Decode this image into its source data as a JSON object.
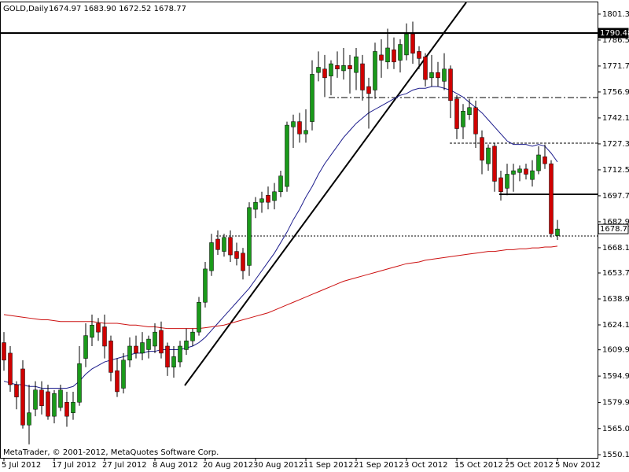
{
  "chart_data": {
    "type": "candlestick",
    "title": "GOLD,Daily",
    "ohlc_text": "1674.97 1683.90 1672.52 1678.77",
    "footer": "MetaTrader, © 2001-2012, MetaQuotes Software Corp.",
    "categories": [
      "5 Jul 2012",
      null,
      null,
      null,
      null,
      null,
      null,
      null,
      "17 Jul 2012",
      null,
      null,
      null,
      null,
      null,
      null,
      null,
      "27 Jul 2012",
      null,
      null,
      null,
      null,
      null,
      null,
      null,
      "8 Aug 2012",
      null,
      null,
      null,
      null,
      null,
      null,
      null,
      "20 Aug 2012",
      null,
      null,
      null,
      null,
      null,
      null,
      null,
      "30 Aug 2012",
      null,
      null,
      null,
      null,
      null,
      null,
      null,
      "11 Sep 2012",
      null,
      null,
      null,
      null,
      null,
      null,
      null,
      "21 Sep 2012",
      null,
      null,
      null,
      null,
      null,
      null,
      null,
      "3 Oct 2012",
      null,
      null,
      null,
      null,
      null,
      null,
      null,
      "15 Oct 2012",
      null,
      null,
      null,
      null,
      null,
      null,
      null,
      "25 Oct 2012",
      null,
      null,
      null,
      null,
      null,
      null,
      null,
      "5 Nov 2012"
    ],
    "open": [
      1614,
      1608,
      1590,
      1599,
      1567,
      1576,
      1587,
      1586,
      1572,
      1577,
      1580,
      1574,
      1580,
      1605,
      1617,
      1625,
      1623,
      1615,
      1598,
      1588,
      1604,
      1612,
      1608,
      1610,
      1612,
      1621,
      1612,
      1600,
      1603,
      1610,
      1615,
      1620,
      1637,
      1655,
      1673,
      1666,
      1674,
      1666,
      1665,
      1658,
      1690,
      1694,
      1698,
      1695,
      1700,
      1703,
      1737,
      1740,
      1733,
      1740,
      1768,
      1770,
      1766,
      1772,
      1769,
      1772,
      1768,
      1773,
      1760,
      1758,
      1778,
      1774,
      1781,
      1775,
      1778,
      1790,
      1780,
      1777,
      1765,
      1768,
      1763,
      1770,
      1753,
      1737,
      1744,
      1748,
      1731,
      1716,
      1726,
      1708,
      1702,
      1710,
      1711,
      1713,
      1707,
      1712,
      1720,
      1716,
      1674.97
    ],
    "high": [
      1620,
      1612,
      1592,
      1604,
      1590,
      1592,
      1592,
      1590,
      1587,
      1590,
      1586,
      1586,
      1612,
      1625,
      1630,
      1628,
      1630,
      1618,
      1605,
      1608,
      1617,
      1618,
      1620,
      1618,
      1625,
      1626,
      1614,
      1612,
      1615,
      1622,
      1622,
      1640,
      1660,
      1676,
      1678,
      1676,
      1678,
      1671,
      1668,
      1694,
      1697,
      1700,
      1703,
      1705,
      1712,
      1740,
      1744,
      1745,
      1747,
      1775,
      1780,
      1778,
      1775,
      1780,
      1782,
      1778,
      1782,
      1778,
      1765,
      1785,
      1787,
      1793,
      1788,
      1787,
      1796,
      1797,
      1783,
      1779,
      1778,
      1774,
      1779,
      1772,
      1755,
      1750,
      1753,
      1752,
      1735,
      1727,
      1728,
      1712,
      1716,
      1716,
      1715,
      1716,
      1718,
      1726,
      1727,
      1718,
      1683.9
    ],
    "low": [
      1598,
      1586,
      1576,
      1565,
      1556,
      1572,
      1573,
      1570,
      1568,
      1575,
      1566,
      1570,
      1578,
      1600,
      1612,
      1615,
      1605,
      1592,
      1583,
      1585,
      1600,
      1605,
      1604,
      1605,
      1608,
      1605,
      1595,
      1594,
      1600,
      1607,
      1612,
      1618,
      1634,
      1652,
      1664,
      1663,
      1660,
      1658,
      1650,
      1652,
      1685,
      1688,
      1690,
      1690,
      1697,
      1700,
      1725,
      1728,
      1728,
      1735,
      1763,
      1754,
      1755,
      1765,
      1764,
      1756,
      1758,
      1752,
      1736,
      1753,
      1765,
      1770,
      1770,
      1768,
      1775,
      1773,
      1770,
      1760,
      1760,
      1760,
      1758,
      1742,
      1730,
      1730,
      1741,
      1725,
      1710,
      1712,
      1700,
      1695,
      1698,
      1700,
      1706,
      1707,
      1703,
      1710,
      1713,
      1674,
      1672.52
    ],
    "close": [
      1604,
      1590,
      1583,
      1567,
      1574,
      1587,
      1578,
      1572,
      1585,
      1587,
      1572,
      1580,
      1602,
      1618,
      1624,
      1620,
      1612,
      1597,
      1586,
      1604,
      1612,
      1608,
      1614,
      1616,
      1620,
      1608,
      1600,
      1606,
      1612,
      1615,
      1620,
      1637,
      1656,
      1671,
      1667,
      1674,
      1664,
      1662,
      1655,
      1691,
      1694,
      1696,
      1694,
      1700,
      1709,
      1738,
      1740,
      1733,
      1735,
      1767,
      1771,
      1765,
      1773,
      1770,
      1772,
      1770,
      1777,
      1758,
      1756,
      1780,
      1775,
      1782,
      1774,
      1784,
      1790,
      1779,
      1776,
      1764,
      1768,
      1765,
      1770,
      1752,
      1736,
      1746,
      1748,
      1733,
      1718,
      1725,
      1706,
      1700,
      1710,
      1712,
      1713,
      1710,
      1712,
      1721,
      1716,
      1676,
      1678.77
    ],
    "up_color": "#1a9a1a",
    "down_color": "#d00000",
    "lines": [
      {
        "color": "#1c1c8c",
        "values": [
          1592,
          1591,
          1590,
          1590,
          1589,
          1589,
          1588,
          1588,
          1588,
          1588,
          1588,
          1589,
          1592,
          1596,
          1599,
          1601,
          1603,
          1604,
          1605,
          1606,
          1607,
          1608,
          1608,
          1609,
          1609,
          1610,
          1610,
          1610,
          1610,
          1611,
          1612,
          1614,
          1617,
          1621,
          1625,
          1629,
          1633,
          1637,
          1641,
          1645,
          1650,
          1655,
          1660,
          1665,
          1671,
          1677,
          1684,
          1690,
          1697,
          1703,
          1710,
          1716,
          1721,
          1726,
          1731,
          1735,
          1739,
          1742,
          1745,
          1747,
          1749,
          1751,
          1753,
          1755,
          1756,
          1758,
          1759,
          1759,
          1760,
          1760,
          1759,
          1758,
          1756,
          1754,
          1751,
          1748,
          1745,
          1741,
          1737,
          1733,
          1729,
          1727,
          1727,
          1727,
          1726,
          1727,
          1726,
          1722,
          1717
        ]
      },
      {
        "color": "#cc1010",
        "values": [
          1630,
          1629.5,
          1629,
          1628.5,
          1628,
          1627.5,
          1627,
          1627,
          1626.5,
          1626,
          1626,
          1626,
          1626,
          1626,
          1626,
          1625.5,
          1625,
          1625,
          1625,
          1624.5,
          1624,
          1624,
          1623.5,
          1623,
          1623,
          1622.5,
          1622,
          1622,
          1622,
          1622,
          1622,
          1622,
          1622.5,
          1623,
          1623.5,
          1624,
          1625,
          1626,
          1627,
          1628,
          1629,
          1630,
          1631,
          1632.5,
          1634,
          1635.5,
          1637,
          1638.5,
          1640,
          1641.5,
          1643,
          1644.5,
          1646,
          1647.5,
          1649,
          1650,
          1651,
          1652,
          1653,
          1654,
          1655,
          1656,
          1657,
          1658,
          1659,
          1659.5,
          1660,
          1661,
          1661.5,
          1662,
          1662.5,
          1663,
          1663.5,
          1664,
          1664.5,
          1665,
          1665.5,
          1666,
          1666,
          1666.5,
          1667,
          1667,
          1667.5,
          1667.5,
          1668,
          1668,
          1668.5,
          1668.5,
          1669
        ]
      }
    ],
    "price_labels": [
      {
        "value": 1790.48,
        "label": "1790.48",
        "style": "filled"
      },
      {
        "value": 1678.77,
        "label": "1678.77",
        "style": "boxed"
      }
    ],
    "ylim": [
      1548.3,
      1808.0
    ],
    "yticks": [
      {
        "value": 1550.1,
        "label": "1550.10"
      },
      {
        "value": 1565,
        "label": "1565.00"
      },
      {
        "value": 1579.9,
        "label": "1579.90"
      },
      {
        "value": 1594.9,
        "label": "1594.90"
      },
      {
        "value": 1609.9,
        "label": "1609.90"
      },
      {
        "value": 1624.1,
        "label": "1624.10"
      },
      {
        "value": 1638.9,
        "label": "1638.90"
      },
      {
        "value": 1653.7,
        "label": "1653.70"
      },
      {
        "value": 1668.1,
        "label": "1668.10"
      },
      {
        "value": 1682.9,
        "label": "1682.90"
      },
      {
        "value": 1697.7,
        "label": "1697.70"
      },
      {
        "value": 1712.5,
        "label": "1712.50"
      },
      {
        "value": 1727.3,
        "label": "1727.30"
      },
      {
        "value": 1742.1,
        "label": "1742.10"
      },
      {
        "value": 1756.9,
        "label": "1756.90"
      },
      {
        "value": 1771.7,
        "label": "1771.70"
      },
      {
        "value": 1786.5,
        "label": "1786.50"
      },
      {
        "value": 1801.3,
        "label": "1801.30"
      }
    ]
  }
}
